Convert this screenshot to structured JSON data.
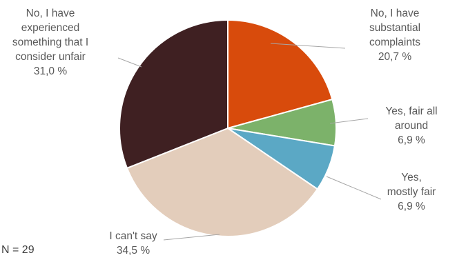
{
  "chart_data": {
    "type": "pie",
    "start": "12 o'clock, clockwise",
    "slices": [
      {
        "name": "No, I have substantial complaints",
        "label_lines": [
          "No, I have",
          "substantial",
          "complaints",
          "20,7 %"
        ],
        "value": 20.7,
        "color": "#D84B0C"
      },
      {
        "name": "Yes, fair all around",
        "label_lines": [
          "Yes, fair all",
          "around",
          "6,9 %"
        ],
        "value": 6.9,
        "color": "#7CB26A"
      },
      {
        "name": "Yes, mostly fair",
        "label_lines": [
          "Yes,",
          "mostly fair",
          "6,9 %"
        ],
        "value": 6.9,
        "color": "#5BA8C5"
      },
      {
        "name": "I can't say",
        "label_lines": [
          "I can't say",
          "34,5 %"
        ],
        "value": 34.5,
        "color": "#E3CDBB"
      },
      {
        "name": "No, I have experienced something that I consider unfair",
        "label_lines": [
          "No, I have",
          "experienced",
          "something that I",
          "consider unfair",
          "31,0 %"
        ],
        "value": 31.0,
        "color": "#3F2022"
      }
    ]
  },
  "note": "N = 29"
}
